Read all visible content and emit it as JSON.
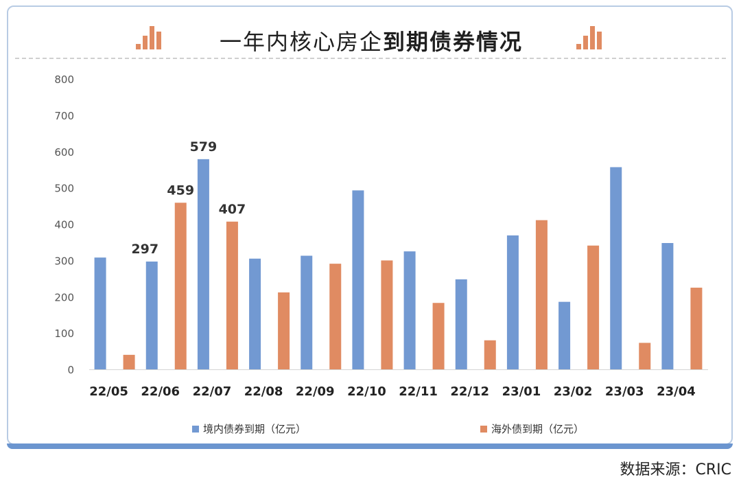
{
  "title": {
    "part1": "一年内核心房企",
    "part2": "到期债券情况"
  },
  "source": "数据来源：CRIC",
  "colors": {
    "domestic": "#7299d2",
    "overseas": "#e08b62",
    "accent_bar": "#6b95cf",
    "border": "#b8cbe4"
  },
  "icons": {
    "left": "bar-chart-icon",
    "right": "bar-chart-icon"
  },
  "chart_data": {
    "type": "bar",
    "categories": [
      "22/05",
      "22/06",
      "22/07",
      "22/08",
      "22/09",
      "22/10",
      "22/11",
      "22/12",
      "23/01",
      "23/02",
      "23/03",
      "23/04"
    ],
    "series": [
      {
        "name": "境内债券到期（亿元）",
        "values": [
          308,
          297,
          579,
          305,
          313,
          493,
          325,
          248,
          369,
          186,
          557,
          348
        ]
      },
      {
        "name": "海外债到期（亿元）",
        "values": [
          40,
          459,
          407,
          212,
          291,
          300,
          183,
          80,
          411,
          341,
          73,
          225
        ]
      }
    ],
    "data_labels": [
      {
        "series": 0,
        "index": 1,
        "text": "297"
      },
      {
        "series": 1,
        "index": 1,
        "text": "459"
      },
      {
        "series": 0,
        "index": 2,
        "text": "579"
      },
      {
        "series": 1,
        "index": 2,
        "text": "407"
      }
    ],
    "yticks": [
      "0",
      "100",
      "200",
      "300",
      "400",
      "500",
      "600",
      "700",
      "800"
    ],
    "ylim": [
      0,
      800
    ],
    "grid": false,
    "legend_position": "bottom"
  }
}
